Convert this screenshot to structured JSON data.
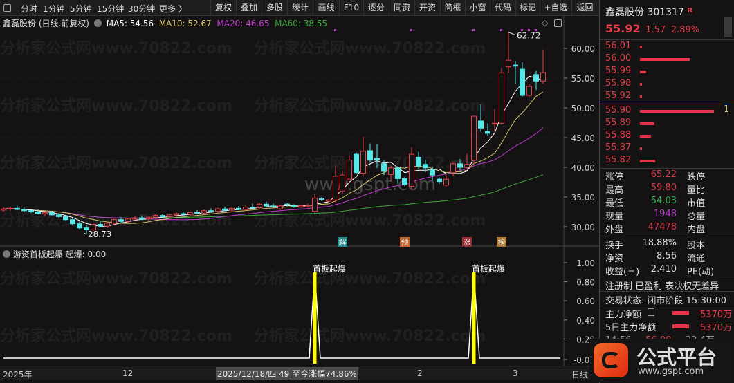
{
  "toolbar": {
    "periods": [
      "分时",
      "1分钟",
      "5分钟",
      "15分钟",
      "30分钟",
      "更多 〉"
    ],
    "buttons": [
      "复权",
      "叠加",
      "多股",
      "统计",
      "画线",
      "F10",
      "逐分",
      "同资",
      "开资",
      "简框",
      "小窗",
      "代码",
      "标记",
      "+自选",
      "返回"
    ]
  },
  "chart_header": {
    "name": "鑫磊股份 (日线.前复权)",
    "ma5": "MA5: 54.56",
    "ma10": "MA10: 52.67",
    "ma20": "MA20: 46.65",
    "ma60": "MA60: 38.55"
  },
  "colors": {
    "up": "#e8404a",
    "down": "#54e8e8",
    "ma5": "#ffffff",
    "ma10": "#d6c46a",
    "ma20": "#c03cd0",
    "ma60": "#3aa83a",
    "signal": "#ffff00"
  },
  "chart_data": {
    "type": "candlestick",
    "y_ticks": [
      "60.00",
      "55.00",
      "50.00",
      "45.00",
      "40.00",
      "35.00",
      "30.00"
    ],
    "ylim": [
      28,
      63
    ],
    "high_label": "62.72",
    "low_label": "28.73",
    "ohlc": [
      [
        32.8,
        33.3,
        32.5,
        33.0
      ],
      [
        33.0,
        33.4,
        32.7,
        33.1
      ],
      [
        33.1,
        33.5,
        32.8,
        32.9
      ],
      [
        32.9,
        33.2,
        32.5,
        32.7
      ],
      [
        32.7,
        33.0,
        32.3,
        32.5
      ],
      [
        32.5,
        32.9,
        32.1,
        32.2
      ],
      [
        32.2,
        32.6,
        31.8,
        32.4
      ],
      [
        32.4,
        32.7,
        31.9,
        32.0
      ],
      [
        32.0,
        32.3,
        31.5,
        31.7
      ],
      [
        31.7,
        32.0,
        31.0,
        31.2
      ],
      [
        31.2,
        31.5,
        30.2,
        30.5
      ],
      [
        30.5,
        30.9,
        29.6,
        29.8
      ],
      [
        29.8,
        30.3,
        28.73,
        29.5
      ],
      [
        29.5,
        30.6,
        29.3,
        30.4
      ],
      [
        30.4,
        31.0,
        29.9,
        30.1
      ],
      [
        30.1,
        30.8,
        29.8,
        30.6
      ],
      [
        30.6,
        31.4,
        30.3,
        31.2
      ],
      [
        31.2,
        31.6,
        30.7,
        30.9
      ],
      [
        30.9,
        31.5,
        30.6,
        31.3
      ],
      [
        31.3,
        31.8,
        31.0,
        31.5
      ],
      [
        31.5,
        31.9,
        31.1,
        31.3
      ],
      [
        31.3,
        31.7,
        31.0,
        31.6
      ],
      [
        31.6,
        32.1,
        31.3,
        31.9
      ],
      [
        31.9,
        32.2,
        31.5,
        31.7
      ],
      [
        31.7,
        32.1,
        31.4,
        32.0
      ],
      [
        32.0,
        32.4,
        31.7,
        32.2
      ],
      [
        32.2,
        32.5,
        31.9,
        32.1
      ],
      [
        32.1,
        32.6,
        31.8,
        32.4
      ],
      [
        32.4,
        32.8,
        32.1,
        32.3
      ],
      [
        32.3,
        32.9,
        32.0,
        32.7
      ],
      [
        32.7,
        33.1,
        32.4,
        32.6
      ],
      [
        32.6,
        33.2,
        32.3,
        33.0
      ],
      [
        33.0,
        33.4,
        32.6,
        32.8
      ],
      [
        32.8,
        33.3,
        32.5,
        33.1
      ],
      [
        33.1,
        33.5,
        32.8,
        32.9
      ],
      [
        32.9,
        33.6,
        32.7,
        33.3
      ],
      [
        33.3,
        33.9,
        33.0,
        33.2
      ],
      [
        33.2,
        34.0,
        33.0,
        33.8
      ],
      [
        33.8,
        34.2,
        33.3,
        33.5
      ],
      [
        33.5,
        33.9,
        33.1,
        33.4
      ],
      [
        33.0,
        33.6,
        32.8,
        33.5
      ],
      [
        33.8,
        34.0,
        33.4,
        33.7
      ],
      [
        33.6,
        33.8,
        33.2,
        33.4
      ],
      [
        33.3,
        33.7,
        33.1,
        33.5
      ],
      [
        33.5,
        33.9,
        33.2,
        33.6
      ],
      [
        32.6,
        35.5,
        32.4,
        34.8
      ],
      [
        34.7,
        35.0,
        34.3,
        34.6
      ],
      [
        34.3,
        34.7,
        34.1,
        34.5
      ],
      [
        34.5,
        40.3,
        34.0,
        38.5
      ],
      [
        36.0,
        39.4,
        35.6,
        38.7
      ],
      [
        38.0,
        42.0,
        37.5,
        41.2
      ],
      [
        42.2,
        42.5,
        38.9,
        39.1
      ],
      [
        39.0,
        45.1,
        38.5,
        42.7
      ],
      [
        42.8,
        44.0,
        40.8,
        41.2
      ],
      [
        41.5,
        43.9,
        39.9,
        41.2
      ],
      [
        40.6,
        41.1,
        38.7,
        39.3
      ],
      [
        38.8,
        40.3,
        37.7,
        39.9
      ],
      [
        39.9,
        40.2,
        37.2,
        38.1
      ],
      [
        38.1,
        38.4,
        36.8,
        37.1
      ],
      [
        36.8,
        43.4,
        36.3,
        42.2
      ],
      [
        41.7,
        42.6,
        39.8,
        40.2
      ],
      [
        40.5,
        41.3,
        39.2,
        39.9
      ],
      [
        39.6,
        40.0,
        37.7,
        38.7
      ],
      [
        38.0,
        38.3,
        37.2,
        37.6
      ],
      [
        37.0,
        38.8,
        36.8,
        38.0
      ],
      [
        39.1,
        40.8,
        38.5,
        40.6
      ],
      [
        40.6,
        41.4,
        39.5,
        40.0
      ],
      [
        40.0,
        42.3,
        39.8,
        40.5
      ],
      [
        41.2,
        48.6,
        40.6,
        48.6
      ],
      [
        47.8,
        50.6,
        46.0,
        46.6
      ],
      [
        46.0,
        47.4,
        45.3,
        45.7
      ],
      [
        47.3,
        49.8,
        46.0,
        47.4
      ],
      [
        47.4,
        56.7,
        47.2,
        55.9
      ],
      [
        56.9,
        62.72,
        55.9,
        58.0
      ],
      [
        57.2,
        57.9,
        54.0,
        57.0
      ],
      [
        56.5,
        57.7,
        51.9,
        52.1
      ],
      [
        52.1,
        54.0,
        51.8,
        53.6
      ],
      [
        55.6,
        56.3,
        53.0,
        54.5
      ],
      [
        54.5,
        59.8,
        54.03,
        55.92
      ]
    ],
    "event_markers": [
      {
        "index": 49,
        "label": "解",
        "color": "#1a8a8a"
      },
      {
        "index": 58,
        "label": "预",
        "color": "#c8642a"
      },
      {
        "index": 67,
        "label": "涨",
        "color": "#a02a30"
      },
      {
        "index": 72,
        "label": "榜",
        "color": "#b0782a"
      }
    ],
    "top_dots": [
      48,
      59,
      68,
      72,
      75,
      76,
      77
    ]
  },
  "indicator": {
    "title": "游资首板起爆",
    "value_label": "起爆: 0.00",
    "y_ticks": [
      "1.00",
      "0.80",
      "0.60",
      "0.40",
      "0.20",
      "-0.01"
    ],
    "ylim": [
      -0.01,
      1.05
    ],
    "signals": [
      {
        "index": 45,
        "value": 0.9,
        "label": "首板起爆"
      },
      {
        "index": 68,
        "value": 0.9,
        "label": "首板起爆"
      }
    ]
  },
  "time_axis": {
    "labels": [
      "2025年",
      "12",
      "2",
      "3"
    ],
    "cursor": "2025/12/18/四 49 至今涨幅74.86%",
    "period": "日线"
  },
  "quote": {
    "name": "鑫磊股份",
    "code": "301317",
    "badge": "R",
    "price": "55.92",
    "change": "1.57",
    "pct": "2.89%",
    "asks": [
      {
        "p": "56.01",
        "v": 0.02
      },
      {
        "p": "56.00",
        "v": 0.67
      },
      {
        "p": "55.99",
        "v": 0.08
      },
      {
        "p": "55.98",
        "v": 0.02
      },
      {
        "p": "55.92",
        "v": 0.02
      }
    ],
    "bids": [
      {
        "p": "55.90",
        "v": 1.0
      },
      {
        "p": "55.89",
        "v": 0.2
      },
      {
        "p": "55.88",
        "v": 0.15
      },
      {
        "p": "55.87",
        "v": 0.02
      },
      {
        "p": "55.82",
        "v": 0.21
      }
    ],
    "bid1_qty": "1",
    "stats": [
      [
        "涨停",
        "65.22",
        "跌停",
        "#e0404a"
      ],
      [
        "最高",
        "59.80",
        "量比",
        "#e0404a"
      ],
      [
        "最低",
        "54.03",
        "市值",
        "#30b050"
      ],
      [
        "现量",
        "1948",
        "总量",
        "#c040d0"
      ],
      [
        "外盘",
        "47478",
        "内盘",
        "#e0404a"
      ]
    ],
    "stats2": [
      [
        "换手",
        "18.88%",
        "股本"
      ],
      [
        "净资",
        "8.56",
        "流通"
      ],
      [
        "收益(三)",
        "2.410",
        "PE(动)"
      ]
    ],
    "tags": "注册制 已盈利 表决权无差异",
    "status": "交易状态: 闭市阶段 15:30:00",
    "flow": [
      [
        "主力净额",
        "5370万"
      ],
      [
        "5日主力净额",
        "5370万"
      ]
    ],
    "tick": [
      "14:56",
      "56.00",
      "22.4万"
    ]
  },
  "watermarks": {
    "site": "分析家公式网www.70822.com",
    "gspt": "www.gspt.com",
    "logo_text": "公式平台",
    "logo_url": "www.gspt.com"
  }
}
